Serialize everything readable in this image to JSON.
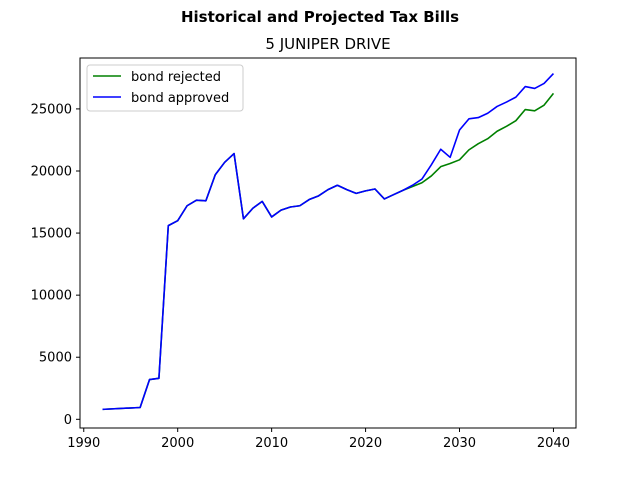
{
  "chart_data": {
    "type": "line",
    "suptitle": "Historical and Projected Tax Bills",
    "title": "5 JUNIPER DRIVE",
    "xlabel": "",
    "ylabel": "",
    "xlim": [
      1989.6,
      2042.4
    ],
    "ylim": [
      -700,
      29100
    ],
    "xticks": [
      1990,
      2000,
      2010,
      2020,
      2030,
      2040
    ],
    "yticks": [
      0,
      5000,
      10000,
      15000,
      20000,
      25000
    ],
    "grid": false,
    "legend_position": "top-left",
    "series": [
      {
        "name": "bond rejected",
        "color": "#008000",
        "x": [
          1992,
          1996,
          1997,
          1998,
          1999,
          2000,
          2001,
          2002,
          2003,
          2004,
          2005,
          2006,
          2007,
          2008,
          2009,
          2010,
          2011,
          2012,
          2013,
          2014,
          2015,
          2016,
          2017,
          2018,
          2019,
          2020,
          2021,
          2022,
          2023,
          2024,
          2025,
          2026,
          2027,
          2028,
          2029,
          2030,
          2031,
          2032,
          2033,
          2034,
          2035,
          2036,
          2037,
          2038,
          2039,
          2040
        ],
        "y": [
          800,
          950,
          3200,
          3300,
          15600,
          16000,
          17200,
          17650,
          17600,
          19700,
          20700,
          21400,
          16150,
          17000,
          17550,
          16300,
          16850,
          17100,
          17200,
          17700,
          18000,
          18500,
          18850,
          18500,
          18200,
          18400,
          18550,
          17750,
          18100,
          18450,
          18750,
          19050,
          19600,
          20350,
          20600,
          20900,
          21700,
          22200,
          22600,
          23200,
          23600,
          24050,
          24950,
          24850,
          25300,
          26250
        ]
      },
      {
        "name": "bond approved",
        "color": "#0000ff",
        "x": [
          1992,
          1996,
          1997,
          1998,
          1999,
          2000,
          2001,
          2002,
          2003,
          2004,
          2005,
          2006,
          2007,
          2008,
          2009,
          2010,
          2011,
          2012,
          2013,
          2014,
          2015,
          2016,
          2017,
          2018,
          2019,
          2020,
          2021,
          2022,
          2023,
          2024,
          2025,
          2026,
          2027,
          2028,
          2029,
          2030,
          2031,
          2032,
          2033,
          2034,
          2035,
          2036,
          2037,
          2038,
          2039,
          2040
        ],
        "y": [
          800,
          950,
          3200,
          3300,
          15600,
          16000,
          17200,
          17650,
          17600,
          19700,
          20700,
          21400,
          16150,
          17000,
          17550,
          16300,
          16850,
          17100,
          17200,
          17700,
          18000,
          18500,
          18850,
          18500,
          18200,
          18400,
          18550,
          17750,
          18100,
          18450,
          18850,
          19350,
          20500,
          21750,
          21100,
          23300,
          24200,
          24300,
          24650,
          25200,
          25550,
          25950,
          26800,
          26650,
          27050,
          27850
        ]
      }
    ]
  }
}
